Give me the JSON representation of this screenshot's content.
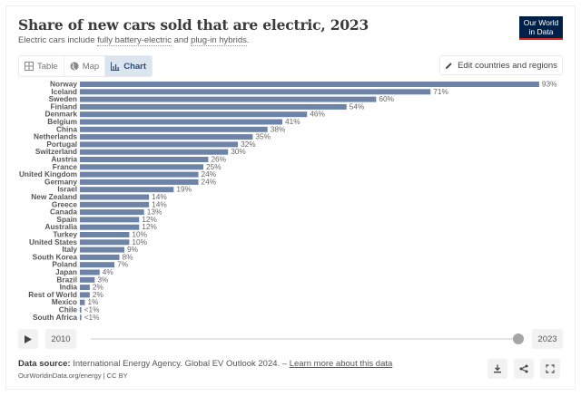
{
  "header": {
    "title": "Share of new cars sold that are electric, 2023",
    "subtitle_prefix": "Electric cars include ",
    "subtitle_term1": "fully battery-electric",
    "subtitle_mid": " and ",
    "subtitle_term2": "plug-in hybrids",
    "subtitle_suffix": ".",
    "logo_line1": "Our World",
    "logo_line2": "in Data"
  },
  "tabs": [
    {
      "label": "Table",
      "icon": "table-icon"
    },
    {
      "label": "Map",
      "icon": "globe-icon"
    },
    {
      "label": "Chart",
      "icon": "chart-icon",
      "active": true
    }
  ],
  "edit_button": {
    "label": "Edit countries and regions",
    "icon": "pencil-icon"
  },
  "colors": {
    "bar": "#6d83a8",
    "label": "#555555",
    "value": "#666666"
  },
  "chart_data": {
    "type": "bar",
    "orientation": "horizontal",
    "title": "Share of new cars sold that are electric, 2023",
    "xlabel": "",
    "ylabel": "",
    "unit": "%",
    "xlim": [
      0,
      100
    ],
    "grid": false,
    "categories": [
      "Norway",
      "Iceland",
      "Sweden",
      "Finland",
      "Denmark",
      "Belgium",
      "China",
      "Netherlands",
      "Portugal",
      "Switzerland",
      "Austria",
      "France",
      "United Kingdom",
      "Germany",
      "Israel",
      "New Zealand",
      "Greece",
      "Canada",
      "Spain",
      "Australia",
      "Turkey",
      "United States",
      "Italy",
      "South Korea",
      "Poland",
      "Japan",
      "Brazil",
      "India",
      "Rest of World",
      "Mexico",
      "Chile",
      "South Africa"
    ],
    "values": [
      93,
      71,
      60,
      54,
      46,
      41,
      38,
      35,
      32,
      30,
      26,
      25,
      24,
      24,
      19,
      14,
      14,
      13,
      12,
      12,
      10,
      10,
      9,
      8,
      7,
      4,
      3,
      2,
      2,
      1,
      0.3,
      0.3
    ],
    "value_labels": [
      "93%",
      "71%",
      "60%",
      "54%",
      "46%",
      "41%",
      "38%",
      "35%",
      "32%",
      "30%",
      "26%",
      "25%",
      "24%",
      "24%",
      "19%",
      "14%",
      "14%",
      "13%",
      "12%",
      "12%",
      "10%",
      "10%",
      "9%",
      "8%",
      "7%",
      "4%",
      "3%",
      "2%",
      "2%",
      "1%",
      "<1%",
      "<1%"
    ]
  },
  "timeline": {
    "start_year": "2010",
    "end_year": "2023",
    "selected_fraction": 1.0
  },
  "footer": {
    "source_label": "Data source:",
    "source_text": " International Energy Agency. Global EV Outlook 2024. – ",
    "learn_more": "Learn more about this data",
    "origin": "OurWorldinData.org/energy | CC BY"
  }
}
